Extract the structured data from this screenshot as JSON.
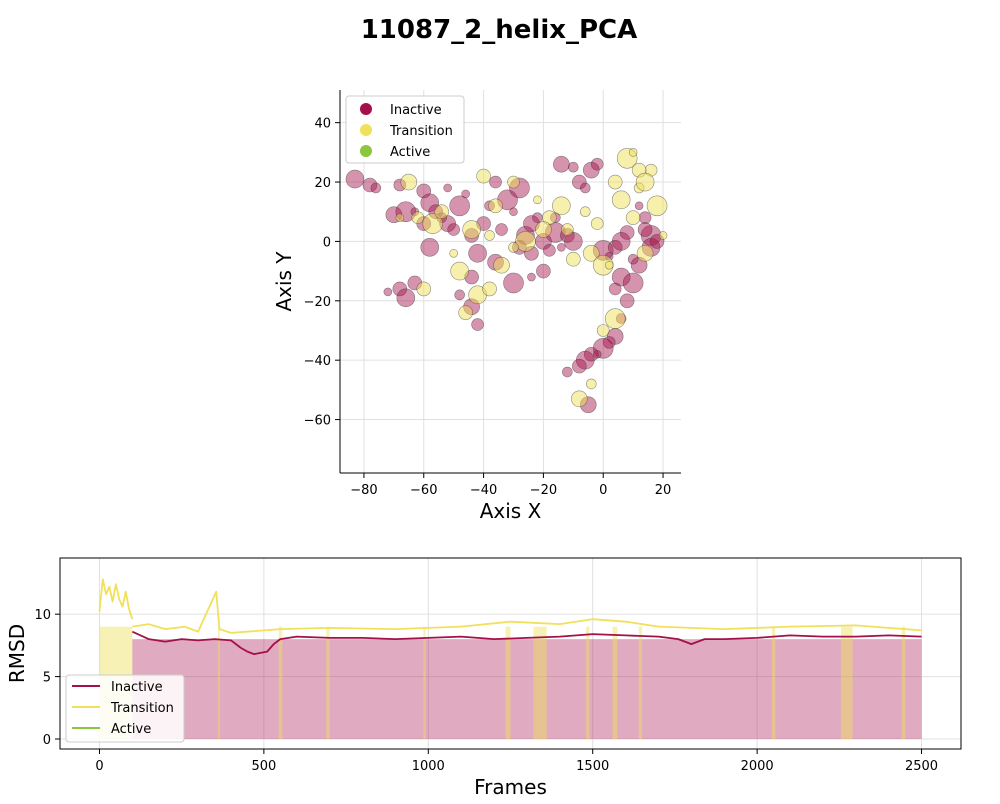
{
  "figure": {
    "title": "11087_2_helix_PCA"
  },
  "colors": {
    "inactive": "#a50f4a",
    "transition": "#f0e05a",
    "active": "#8cc63f"
  },
  "chart_data": [
    {
      "type": "scatter",
      "xlabel": "Axis X",
      "ylabel": "Axis Y",
      "xlim": [
        -88,
        26
      ],
      "ylim": [
        -78,
        51
      ],
      "xticks": [
        "−80",
        "−60",
        "−40",
        "−20",
        "0",
        "20"
      ],
      "xtick_values": [
        -80,
        -60,
        -40,
        -20,
        0,
        20
      ],
      "yticks": [
        "40",
        "20",
        "0",
        "−20",
        "−40",
        "−60"
      ],
      "ytick_values": [
        40,
        20,
        0,
        -20,
        -40,
        -60
      ],
      "grid": true,
      "legend": {
        "position": "top-left",
        "entries": [
          "Inactive",
          "Transition",
          "Active"
        ]
      },
      "series": [
        {
          "name": "Inactive",
          "color": "#a50f4a",
          "points": [
            [
              -83,
              21
            ],
            [
              -78,
              19
            ],
            [
              -76,
              18
            ],
            [
              -70,
              9
            ],
            [
              -68,
              19
            ],
            [
              -66,
              10
            ],
            [
              -63,
              10
            ],
            [
              -60,
              17
            ],
            [
              -58,
              13
            ],
            [
              -56,
              10
            ],
            [
              -54,
              8
            ],
            [
              -52,
              6
            ],
            [
              -50,
              4
            ],
            [
              -48,
              12
            ],
            [
              -46,
              16
            ],
            [
              -44,
              2
            ],
            [
              -42,
              -4
            ],
            [
              -40,
              6
            ],
            [
              -38,
              12
            ],
            [
              -36,
              -7
            ],
            [
              -34,
              4
            ],
            [
              -32,
              14
            ],
            [
              -30,
              10
            ],
            [
              -28,
              -2
            ],
            [
              -26,
              2
            ],
            [
              -24,
              -4
            ],
            [
              -22,
              8
            ],
            [
              -20,
              0
            ],
            [
              -18,
              -3
            ],
            [
              -16,
              3
            ],
            [
              -14,
              -2
            ],
            [
              -12,
              2
            ],
            [
              -10,
              0
            ],
            [
              -8,
              20
            ],
            [
              -6,
              18
            ],
            [
              -4,
              24
            ],
            [
              -2,
              26
            ],
            [
              0,
              -3
            ],
            [
              2,
              -5
            ],
            [
              4,
              -2
            ],
            [
              6,
              0
            ],
            [
              8,
              3
            ],
            [
              10,
              -6
            ],
            [
              12,
              -8
            ],
            [
              14,
              8
            ],
            [
              16,
              2
            ],
            [
              -72,
              -17
            ],
            [
              -68,
              -16
            ],
            [
              -66,
              -19
            ],
            [
              -63,
              -14
            ],
            [
              -48,
              -18
            ],
            [
              -44,
              -22
            ],
            [
              -42,
              -28
            ],
            [
              -30,
              -14
            ],
            [
              -24,
              -12
            ],
            [
              -20,
              -10
            ],
            [
              6,
              -12
            ],
            [
              8,
              -20
            ],
            [
              6,
              -26
            ],
            [
              4,
              -32
            ],
            [
              2,
              -34
            ],
            [
              0,
              -36
            ],
            [
              -2,
              -38
            ],
            [
              -4,
              -38
            ],
            [
              -6,
              -40
            ],
            [
              -8,
              -42
            ],
            [
              -12,
              -44
            ],
            [
              -5,
              -55
            ],
            [
              4,
              -16
            ],
            [
              10,
              -14
            ],
            [
              12,
              12
            ],
            [
              14,
              4
            ],
            [
              16,
              -2
            ],
            [
              18,
              0
            ],
            [
              -10,
              25
            ],
            [
              -14,
              26
            ],
            [
              -36,
              20
            ],
            [
              -28,
              18
            ],
            [
              -52,
              18
            ],
            [
              -44,
              -12
            ],
            [
              -58,
              -2
            ],
            [
              -60,
              6
            ],
            [
              -16,
              8
            ],
            [
              -24,
              6
            ]
          ]
        },
        {
          "name": "Transition",
          "color": "#f0e05a",
          "points": [
            [
              -65,
              20
            ],
            [
              -62,
              8
            ],
            [
              -57,
              6
            ],
            [
              -50,
              -4
            ],
            [
              -46,
              -24
            ],
            [
              -42,
              -18
            ],
            [
              -40,
              22
            ],
            [
              -38,
              2
            ],
            [
              -34,
              -8
            ],
            [
              -30,
              20
            ],
            [
              -26,
              0
            ],
            [
              -22,
              14
            ],
            [
              -18,
              8
            ],
            [
              -14,
              12
            ],
            [
              -10,
              -6
            ],
            [
              -6,
              10
            ],
            [
              -4,
              -4
            ],
            [
              -2,
              6
            ],
            [
              0,
              -8
            ],
            [
              2,
              -8
            ],
            [
              4,
              20
            ],
            [
              6,
              14
            ],
            [
              10,
              8
            ],
            [
              12,
              18
            ],
            [
              14,
              -4
            ],
            [
              16,
              24
            ],
            [
              18,
              12
            ],
            [
              20,
              2
            ],
            [
              -60,
              -16
            ],
            [
              -48,
              -10
            ],
            [
              -38,
              -16
            ],
            [
              -4,
              -48
            ],
            [
              -8,
              -53
            ],
            [
              0,
              -30
            ],
            [
              4,
              -26
            ],
            [
              -68,
              8
            ],
            [
              -54,
              10
            ],
            [
              -44,
              4
            ],
            [
              -36,
              12
            ],
            [
              -30,
              -2
            ],
            [
              -20,
              4
            ],
            [
              -12,
              4
            ],
            [
              8,
              28
            ],
            [
              10,
              30
            ],
            [
              12,
              24
            ],
            [
              14,
              20
            ]
          ]
        },
        {
          "name": "Active",
          "color": "#8cc63f",
          "points": []
        }
      ]
    },
    {
      "type": "line",
      "xlabel": "Frames",
      "ylabel": "RMSD",
      "xlim": [
        -120,
        2620
      ],
      "ylim": [
        -0.8,
        14.5
      ],
      "xticks": [
        "0",
        "500",
        "1000",
        "1500",
        "2000",
        "2500"
      ],
      "xtick_values": [
        0,
        500,
        1000,
        1500,
        2000,
        2500
      ],
      "yticks": [
        "10",
        "5",
        "0"
      ],
      "ytick_values": [
        10,
        5,
        0
      ],
      "grid": true,
      "legend": {
        "position": "bottom-left",
        "entries": [
          "Inactive",
          "Transition",
          "Active"
        ]
      },
      "n_frames": 2500,
      "series": [
        {
          "name": "Inactive",
          "color": "#a50f4a",
          "segments": [
            {
              "x": [
                100,
                150,
                200,
                250,
                300,
                350,
                400,
                430,
                450,
                470,
                490,
                510,
                530,
                550,
                600,
                700,
                800,
                900,
                1000,
                1100,
                1200,
                1300,
                1400,
                1500,
                1600,
                1700,
                1760,
                1800,
                1840,
                1900,
                2000,
                2100,
                2200,
                2300,
                2400,
                2500
              ],
              "y": [
                8.6,
                8.0,
                7.8,
                8.0,
                7.9,
                8.0,
                7.9,
                7.3,
                7.0,
                6.8,
                6.9,
                7.0,
                7.6,
                8.0,
                8.2,
                8.1,
                8.1,
                8.0,
                8.1,
                8.2,
                8.0,
                8.1,
                8.2,
                8.4,
                8.3,
                8.2,
                8.0,
                7.6,
                8.0,
                8.0,
                8.1,
                8.3,
                8.2,
                8.2,
                8.3,
                8.2
              ]
            }
          ]
        },
        {
          "name": "Transition",
          "color": "#f0e05a",
          "segments": [
            {
              "x": [
                0,
                10,
                20,
                30,
                40,
                50,
                60,
                70,
                80,
                90,
                100
              ],
              "y": [
                10.2,
                12.8,
                11.6,
                12.2,
                11.0,
                12.4,
                11.2,
                10.6,
                11.8,
                10.4,
                9.6
              ]
            },
            {
              "x": [
                100,
                150,
                200,
                260,
                300,
                355,
                365,
                400,
                550,
                700,
                900,
                1100,
                1250,
                1400,
                1500,
                1600,
                1700,
                1900,
                2100,
                2300,
                2500
              ],
              "y": [
                9.0,
                9.2,
                8.8,
                9.0,
                8.6,
                11.8,
                8.8,
                8.5,
                8.8,
                8.9,
                8.8,
                9.0,
                9.4,
                9.2,
                9.6,
                9.4,
                9.0,
                8.8,
                9.0,
                9.1,
                8.7
              ]
            }
          ]
        },
        {
          "name": "Active",
          "color": "#8cc63f",
          "segments": []
        }
      ],
      "state_bands": [
        {
          "state": "Transition",
          "start": 0,
          "end": 100
        },
        {
          "state": "Inactive",
          "start": 100,
          "end": 2500
        },
        {
          "state": "Transition",
          "start": 360,
          "end": 366
        },
        {
          "state": "Transition",
          "start": 545,
          "end": 556
        },
        {
          "state": "Transition",
          "start": 690,
          "end": 700
        },
        {
          "state": "Transition",
          "start": 985,
          "end": 992
        },
        {
          "state": "Transition",
          "start": 1235,
          "end": 1250
        },
        {
          "state": "Transition",
          "start": 1320,
          "end": 1360
        },
        {
          "state": "Transition",
          "start": 1480,
          "end": 1490
        },
        {
          "state": "Transition",
          "start": 1560,
          "end": 1575
        },
        {
          "state": "Transition",
          "start": 1640,
          "end": 1650
        },
        {
          "state": "Transition",
          "start": 2045,
          "end": 2055
        },
        {
          "state": "Transition",
          "start": 2255,
          "end": 2290
        },
        {
          "state": "Transition",
          "start": 2440,
          "end": 2450
        }
      ]
    }
  ]
}
